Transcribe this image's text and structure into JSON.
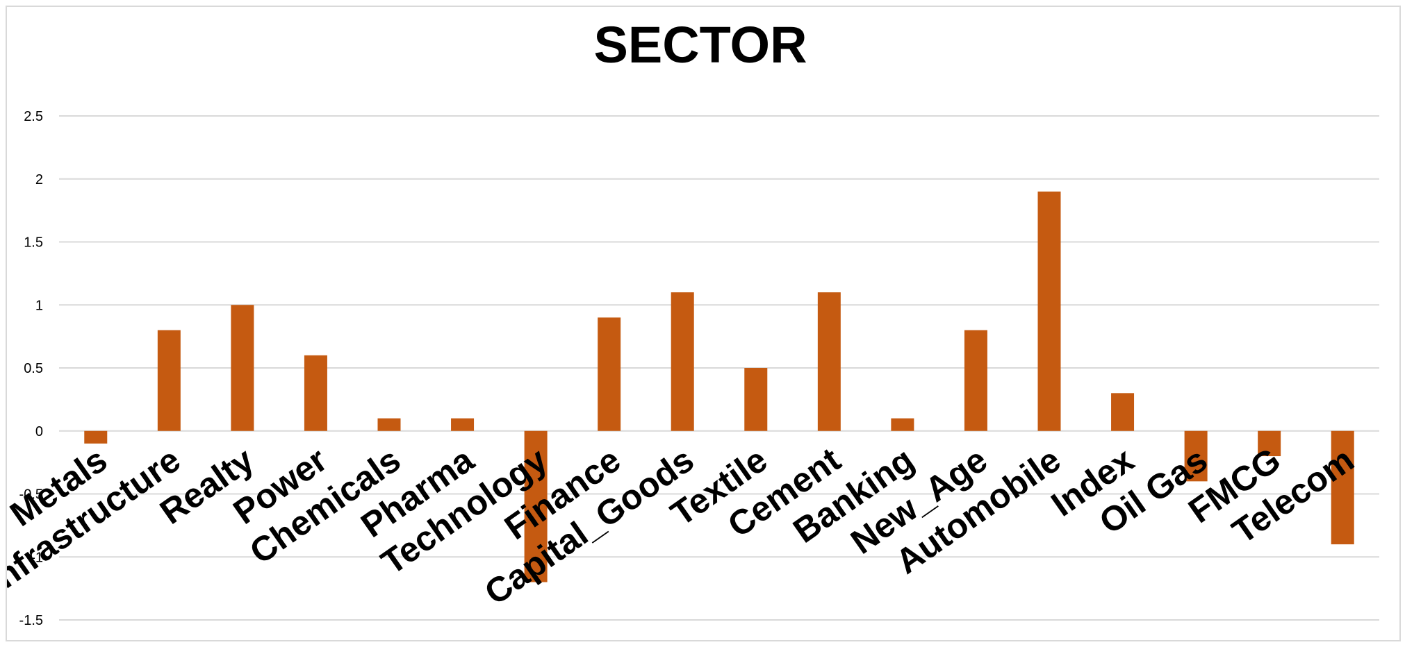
{
  "chart_data": {
    "type": "bar",
    "title": "SECTOR",
    "xlabel": "",
    "ylabel": "",
    "categories": [
      "Metals",
      "Infrastructure",
      "Realty",
      "Power",
      "Chemicals",
      "Pharma",
      "Technology",
      "Finance",
      "Capital_Goods",
      "Textile",
      "Cement",
      "Banking",
      "New_Age",
      "Automobile",
      "Index",
      "Oil Gas",
      "FMCG",
      "Telecom"
    ],
    "values": [
      -0.1,
      0.8,
      1.0,
      0.6,
      0.1,
      0.1,
      -1.2,
      0.9,
      1.1,
      0.5,
      1.1,
      0.1,
      0.8,
      1.9,
      0.3,
      -0.4,
      -0.2,
      -0.9
    ],
    "ylim": [
      -1.5,
      2.5
    ],
    "yticks": [
      "-1.5",
      "-1",
      "-0.5",
      "0",
      "0.5",
      "1",
      "1.5",
      "2",
      "2.5"
    ],
    "grid": true,
    "legend": "none",
    "bar_color": "#c55a11"
  }
}
